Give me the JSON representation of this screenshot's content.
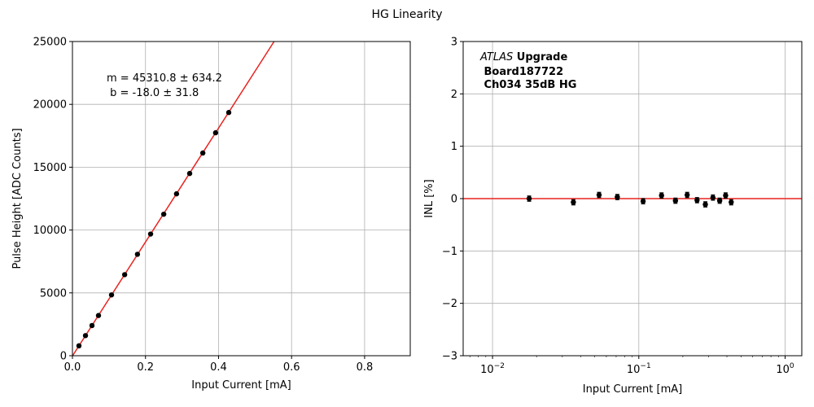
{
  "figure": {
    "title": "HG Linearity"
  },
  "chart_data": [
    {
      "type": "scatter",
      "panel": "left",
      "title": "",
      "xlabel": "Input Current [mA]",
      "ylabel": "Pulse Height [ADC Counts]",
      "xlim": [
        0,
        0.925
      ],
      "ylim": [
        0,
        25000
      ],
      "xscale": "linear",
      "grid": true,
      "xticks": [
        0,
        0.2,
        0.4,
        0.6,
        0.8
      ],
      "xtick_labels": [
        "0.0",
        "0.2",
        "0.4",
        "0.6",
        "0.8"
      ],
      "yticks": [
        0,
        5000,
        10000,
        15000,
        20000,
        25000
      ],
      "ytick_labels": [
        "0",
        "5000",
        "10000",
        "15000",
        "20000",
        "25000"
      ],
      "annotation_lines": [
        "m = 45310.8 ± 634.2",
        " b = -18.0 ± 31.8"
      ],
      "fit": {
        "slope": 45310.8,
        "intercept": -18.0,
        "color": "#e8231f"
      },
      "series": [
        {
          "color": "#000000",
          "x": [
            0.0178,
            0.0357,
            0.0535,
            0.0713,
            0.107,
            0.143,
            0.178,
            0.214,
            0.25,
            0.285,
            0.321,
            0.357,
            0.392,
            0.428
          ],
          "y": [
            790,
            1600,
            2400,
            3200,
            4840,
            6450,
            8070,
            9680,
            11260,
            12880,
            14500,
            16130,
            17740,
            19350
          ]
        }
      ]
    },
    {
      "type": "scatter",
      "panel": "right",
      "title": "",
      "xlabel": "Input Current [mA]",
      "ylabel": "INL [%]",
      "xlim": [
        0.0063,
        1.3
      ],
      "ylim": [
        -3,
        3
      ],
      "xscale": "log",
      "grid": true,
      "xticks": [
        0.01,
        0.1,
        1
      ],
      "xtick_bases": [
        "10",
        "10",
        "10"
      ],
      "xtick_exponents": [
        "−2",
        "−1",
        "0"
      ],
      "yticks": [
        -3,
        -2,
        -1,
        0,
        1,
        2,
        3
      ],
      "ytick_labels": [
        "−3",
        "−2",
        "−1",
        "0",
        "1",
        "2",
        "3"
      ],
      "annotation_lines": [
        "ATLAS",
        " Upgrade",
        " Board187722",
        " Ch034 35dB HG"
      ],
      "reference_line": {
        "y": 0,
        "color": "#e8231f"
      },
      "series": [
        {
          "color": "#000000",
          "x": [
            0.0178,
            0.0357,
            0.0535,
            0.0713,
            0.107,
            0.143,
            0.178,
            0.214,
            0.25,
            0.285,
            0.321,
            0.357,
            0.392,
            0.428
          ],
          "y": [
            0.0,
            -0.07,
            0.07,
            0.03,
            -0.05,
            0.06,
            -0.04,
            0.07,
            -0.03,
            -0.11,
            0.02,
            -0.04,
            0.06,
            -0.07
          ],
          "yerr": 0.05
        }
      ]
    }
  ]
}
